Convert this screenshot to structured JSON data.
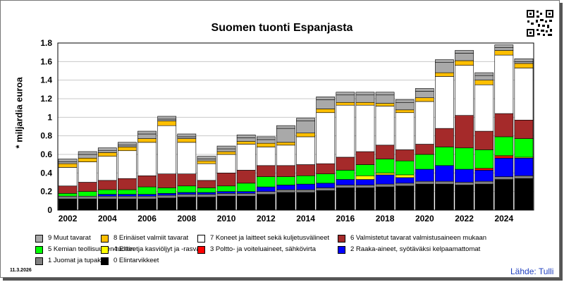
{
  "date_stamp": "11.3.2026",
  "source": "Lähde: Tulli",
  "qr_icon": "qr-code-icon",
  "chart_data": {
    "type": "bar",
    "stacked": true,
    "title": "Suomen tuonti Espanjasta",
    "xlabel": "",
    "ylabel": "* miljardia euroa",
    "ylim": [
      0,
      1.8
    ],
    "yticks": [
      0,
      0.2,
      0.4,
      0.6,
      0.8,
      1,
      1.2,
      1.4,
      1.6,
      1.8
    ],
    "ytick_labels": [
      "0",
      "0.2",
      "0.4",
      "0.6",
      "0.8",
      "1",
      "1.2",
      "1.4",
      "1.6",
      "1.8"
    ],
    "grid": true,
    "legend_position": "bottom",
    "categories": [
      "2002",
      "2003",
      "2004",
      "2005",
      "2006",
      "2007",
      "2008",
      "2009",
      "2010",
      "2011",
      "2012",
      "2013",
      "2014",
      "2015",
      "2016",
      "2017",
      "2018",
      "2019",
      "2020",
      "2021",
      "2022",
      "2023",
      "2024",
      "2025"
    ],
    "xtick_labels": [
      "2002",
      "",
      "2004",
      "",
      "2006",
      "",
      "2008",
      "",
      "2010",
      "",
      "2012",
      "",
      "2014",
      "",
      "2016",
      "",
      "2018",
      "",
      "2020",
      "",
      "2022",
      "",
      "2024",
      ""
    ],
    "series": [
      {
        "name": "0 Elintarvikkeet",
        "color": "#000000",
        "values": [
          0.12,
          0.12,
          0.12,
          0.12,
          0.12,
          0.13,
          0.14,
          0.14,
          0.15,
          0.15,
          0.17,
          0.19,
          0.19,
          0.21,
          0.24,
          0.24,
          0.25,
          0.26,
          0.28,
          0.28,
          0.27,
          0.28,
          0.33,
          0.34
        ]
      },
      {
        "name": "1 Juomat ja tupakka",
        "color": "#808080",
        "values": [
          0.03,
          0.03,
          0.03,
          0.03,
          0.03,
          0.03,
          0.03,
          0.03,
          0.03,
          0.03,
          0.03,
          0.03,
          0.03,
          0.03,
          0.03,
          0.03,
          0.03,
          0.03,
          0.03,
          0.03,
          0.03,
          0.03,
          0.03,
          0.03
        ]
      },
      {
        "name": "2 Raaka-aineet, syötäväksi kelpaamattomat",
        "color": "#0000ff",
        "values": [
          0.0,
          0.0,
          0.02,
          0.02,
          0.02,
          0.02,
          0.02,
          0.02,
          0.02,
          0.02,
          0.05,
          0.05,
          0.06,
          0.05,
          0.06,
          0.06,
          0.1,
          0.06,
          0.13,
          0.17,
          0.14,
          0.12,
          0.2,
          0.19
        ]
      },
      {
        "name": "3 Poltto- ja voiteluaineet, sähkövirta",
        "color": "#ff0000",
        "values": [
          0,
          0,
          0,
          0,
          0,
          0,
          0,
          0,
          0,
          0,
          0,
          0,
          0,
          0,
          0,
          0,
          0,
          0,
          0,
          0,
          0,
          0.02,
          0.02,
          0
        ]
      },
      {
        "name": "4 Eläin- ja kasviöljyt ja -rasvat",
        "color": "#ffff00",
        "values": [
          0,
          0,
          0,
          0,
          0,
          0,
          0,
          0,
          0,
          0,
          0,
          0,
          0,
          0,
          0,
          0.04,
          0.02,
          0.03,
          0,
          0,
          0,
          0,
          0.01,
          0.01
        ]
      },
      {
        "name": "5 Kemian teollisuuden tuotteet",
        "color": "#00ff00",
        "values": [
          0.03,
          0.05,
          0.05,
          0.05,
          0.08,
          0.06,
          0.07,
          0.05,
          0.06,
          0.09,
          0.11,
          0.09,
          0.09,
          0.1,
          0.1,
          0.12,
          0.15,
          0.15,
          0.16,
          0.2,
          0.23,
          0.2,
          0.2,
          0.2
        ]
      },
      {
        "name": "6 Valmistetut tavarat valmistusaineen mukaan",
        "color": "#a52a2a",
        "values": [
          0.08,
          0.1,
          0.1,
          0.12,
          0.12,
          0.15,
          0.13,
          0.08,
          0.14,
          0.14,
          0.12,
          0.12,
          0.12,
          0.11,
          0.14,
          0.14,
          0.15,
          0.12,
          0.11,
          0.2,
          0.35,
          0.2,
          0.25,
          0.2
        ]
      },
      {
        "name": "7 Koneet ja laitteet sekä kuljetusvälineet",
        "color": "#ffffff",
        "values": [
          0.2,
          0.22,
          0.26,
          0.3,
          0.36,
          0.52,
          0.34,
          0.18,
          0.2,
          0.28,
          0.2,
          0.22,
          0.3,
          0.55,
          0.56,
          0.5,
          0.42,
          0.4,
          0.46,
          0.56,
          0.54,
          0.5,
          0.63,
          0.56
        ]
      },
      {
        "name": "8 Erinäiset valmiit tavarat",
        "color": "#ffbf00",
        "values": [
          0.04,
          0.04,
          0.04,
          0.04,
          0.04,
          0.05,
          0.04,
          0.03,
          0.03,
          0.03,
          0.04,
          0.03,
          0.04,
          0.04,
          0.03,
          0.03,
          0.03,
          0.03,
          0.04,
          0.04,
          0.05,
          0.05,
          0.05,
          0.05
        ]
      },
      {
        "name": "9 Muut tavarat",
        "color": "#a9a9a9",
        "values": [
          0.02,
          0.04,
          0.02,
          0.02,
          0.05,
          0.02,
          0.02,
          0.02,
          0.03,
          0.04,
          0.04,
          0.15,
          0.13,
          0.1,
          0.08,
          0.08,
          0.09,
          0.08,
          0.07,
          0.11,
          0.08,
          0.05,
          0.03,
          0.02
        ]
      }
    ]
  },
  "legend": {
    "rows": [
      [
        "9 Muut tavarat",
        "8 Erinäiset valmiit tavarat",
        "7 Koneet ja laitteet sekä kuljetusvälineet",
        "6 Valmistetut tavarat valmistusaineen mukaan"
      ],
      [
        "5 Kemian teollisuuden tuotteet",
        "4 Eläin- ja kasviöljyt ja -rasvat",
        "3 Poltto- ja voiteluaineet, sähkövirta",
        "2 Raaka-aineet, syötäväksi kelpaamattomat"
      ],
      [
        "1 Juomat ja tupakka",
        "0 Elintarvikkeet"
      ]
    ],
    "colors": [
      [
        "#a9a9a9",
        "#ffbf00",
        "#ffffff",
        "#a52a2a"
      ],
      [
        "#00ff00",
        "#ffff00",
        "#ff0000",
        "#0000ff"
      ],
      [
        "#808080",
        "#000000"
      ]
    ]
  }
}
